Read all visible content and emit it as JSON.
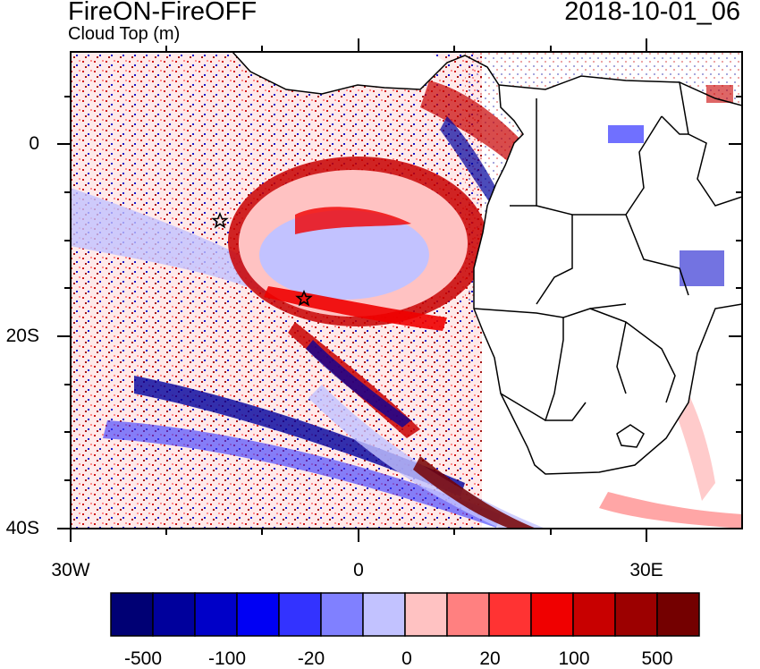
{
  "title": "FireON-FireOFF",
  "subtitle": "Cloud Top (m)",
  "date": "2018-10-01_06",
  "map": {
    "lon_range": [
      -30,
      40
    ],
    "lat_range": [
      -40,
      10
    ],
    "markers": [
      {
        "name": "star-marker",
        "lon": -14.4,
        "lat": -7.9
      },
      {
        "name": "star-marker",
        "lon": -5.7,
        "lat": -15.9
      }
    ]
  },
  "axes": {
    "y_ticks": [
      {
        "label": "0",
        "lat": 0
      },
      {
        "label": "20S",
        "lat": -20
      },
      {
        "label": "40S",
        "lat": -40
      }
    ],
    "x_ticks": [
      {
        "label": "30W",
        "lon": -30
      },
      {
        "label": "0",
        "lon": 0
      },
      {
        "label": "30E",
        "lon": 30
      }
    ]
  },
  "colorbar": {
    "colors": [
      "#000074",
      "#00009c",
      "#0000c8",
      "#0000f4",
      "#3333ff",
      "#8080ff",
      "#c2c2ff",
      "#ffc2c2",
      "#ff8080",
      "#ff3333",
      "#f00000",
      "#c80000",
      "#9c0000",
      "#740000"
    ],
    "labels": [
      "-500",
      "-100",
      "-20",
      "0",
      "20",
      "100",
      "500"
    ]
  }
}
